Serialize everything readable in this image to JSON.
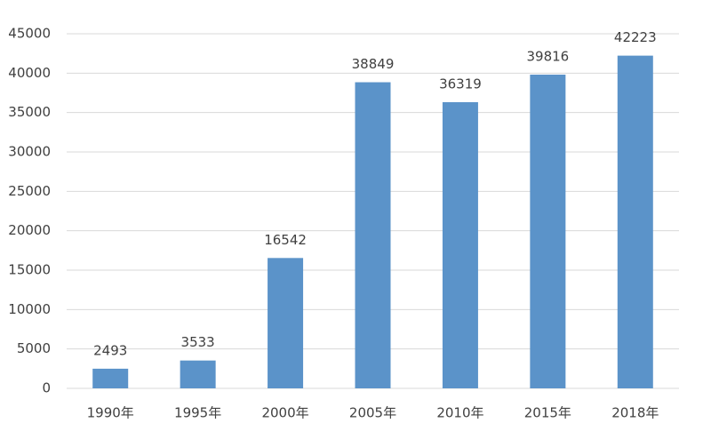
{
  "chart_data": {
    "type": "bar",
    "categories": [
      "1990年",
      "1995年",
      "2000年",
      "2005年",
      "2010年",
      "2015年",
      "2018年"
    ],
    "values": [
      2493,
      3533,
      16542,
      38849,
      36319,
      39816,
      42223
    ],
    "color": "#5b93c9",
    "ylim": [
      0,
      45000
    ],
    "yticks": [
      0,
      5000,
      10000,
      15000,
      20000,
      25000,
      30000,
      35000,
      40000,
      45000
    ],
    "grid": true
  }
}
